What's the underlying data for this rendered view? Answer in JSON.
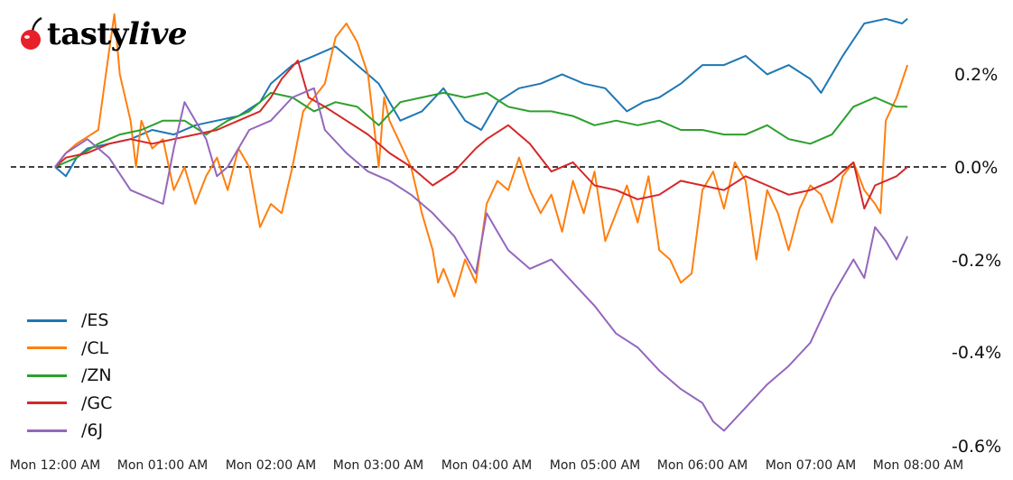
{
  "brand": {
    "logo_text_bold": "tasty",
    "logo_text_italic": "live",
    "logo_icon": "cherry-icon"
  },
  "chart_data": {
    "type": "line",
    "title": "",
    "xlabel": "",
    "ylabel": "",
    "ylim": [
      -0.6,
      0.33
    ],
    "yticks": [
      0.2,
      0.0,
      -0.2,
      -0.4,
      -0.6
    ],
    "ytick_labels": [
      "0.2%",
      "0.0%",
      "-0.2%",
      "-0.4%",
      "-0.6%"
    ],
    "yaxis_position": "right",
    "xtick_labels": [
      "Mon 12:00 AM",
      "Mon 01:00 AM",
      "Mon 02:00 AM",
      "Mon 03:00 AM",
      "Mon 04:00 AM",
      "Mon 05:00 AM",
      "Mon 06:00 AM",
      "Mon 07:00 AM",
      "Mon 08:00 AM"
    ],
    "x_unit": "hours since Mon 12:00 AM",
    "reference_line": {
      "y": 0.0,
      "style": "dashed",
      "color": "#000000"
    },
    "grid": false,
    "legend_position": "lower left",
    "series": [
      {
        "name": "/ES",
        "color": "#1f77b4",
        "x": [
          0,
          0.1,
          0.2,
          0.3,
          0.5,
          0.7,
          0.9,
          1.1,
          1.3,
          1.5,
          1.7,
          1.9,
          2.0,
          2.2,
          2.4,
          2.6,
          2.8,
          3.0,
          3.2,
          3.4,
          3.6,
          3.8,
          3.95,
          4.1,
          4.3,
          4.5,
          4.7,
          4.9,
          5.1,
          5.3,
          5.45,
          5.6,
          5.8,
          6.0,
          6.2,
          6.4,
          6.6,
          6.8,
          7.0,
          7.1,
          7.3,
          7.5,
          7.7,
          7.85,
          7.9
        ],
        "values": [
          0.0,
          -0.02,
          0.02,
          0.04,
          0.05,
          0.06,
          0.08,
          0.07,
          0.09,
          0.1,
          0.11,
          0.14,
          0.18,
          0.22,
          0.24,
          0.26,
          0.22,
          0.18,
          0.1,
          0.12,
          0.17,
          0.1,
          0.08,
          0.14,
          0.17,
          0.18,
          0.2,
          0.18,
          0.17,
          0.12,
          0.14,
          0.15,
          0.18,
          0.22,
          0.22,
          0.24,
          0.2,
          0.22,
          0.19,
          0.16,
          0.24,
          0.31,
          0.32,
          0.31,
          0.32
        ]
      },
      {
        "name": "/CL",
        "color": "#ff7f0e",
        "x": [
          0,
          0.1,
          0.2,
          0.4,
          0.5,
          0.55,
          0.6,
          0.7,
          0.75,
          0.8,
          0.9,
          1.0,
          1.1,
          1.2,
          1.3,
          1.4,
          1.5,
          1.6,
          1.7,
          1.8,
          1.9,
          2.0,
          2.1,
          2.2,
          2.3,
          2.5,
          2.6,
          2.7,
          2.8,
          2.9,
          3.0,
          3.05,
          3.1,
          3.2,
          3.3,
          3.4,
          3.5,
          3.55,
          3.6,
          3.7,
          3.8,
          3.9,
          4.0,
          4.1,
          4.2,
          4.3,
          4.4,
          4.5,
          4.6,
          4.7,
          4.8,
          4.9,
          5.0,
          5.1,
          5.2,
          5.3,
          5.4,
          5.5,
          5.6,
          5.7,
          5.8,
          5.9,
          6.0,
          6.1,
          6.2,
          6.3,
          6.4,
          6.5,
          6.6,
          6.7,
          6.8,
          6.9,
          7.0,
          7.1,
          7.2,
          7.3,
          7.4,
          7.5,
          7.6,
          7.65,
          7.7,
          7.8,
          7.9
        ],
        "values": [
          0.0,
          0.03,
          0.05,
          0.08,
          0.25,
          0.33,
          0.2,
          0.1,
          0.0,
          0.1,
          0.04,
          0.06,
          -0.05,
          0.0,
          -0.08,
          -0.02,
          0.02,
          -0.05,
          0.04,
          0.0,
          -0.13,
          -0.08,
          -0.1,
          0.0,
          0.12,
          0.18,
          0.28,
          0.31,
          0.27,
          0.2,
          0.0,
          0.15,
          0.1,
          0.05,
          0.0,
          -0.1,
          -0.18,
          -0.25,
          -0.22,
          -0.28,
          -0.2,
          -0.25,
          -0.08,
          -0.03,
          -0.05,
          0.02,
          -0.05,
          -0.1,
          -0.06,
          -0.14,
          -0.03,
          -0.1,
          -0.01,
          -0.16,
          -0.1,
          -0.04,
          -0.12,
          -0.02,
          -0.18,
          -0.2,
          -0.25,
          -0.23,
          -0.05,
          -0.01,
          -0.09,
          0.01,
          -0.03,
          -0.2,
          -0.05,
          -0.1,
          -0.18,
          -0.09,
          -0.04,
          -0.06,
          -0.12,
          -0.02,
          0.01,
          -0.05,
          -0.08,
          -0.1,
          0.1,
          0.15,
          0.22
        ]
      },
      {
        "name": "/ZN",
        "color": "#2ca02c",
        "x": [
          0,
          0.2,
          0.4,
          0.6,
          0.8,
          1.0,
          1.2,
          1.4,
          1.6,
          1.8,
          2.0,
          2.2,
          2.4,
          2.6,
          2.8,
          3.0,
          3.2,
          3.4,
          3.6,
          3.8,
          4.0,
          4.2,
          4.4,
          4.6,
          4.8,
          5.0,
          5.2,
          5.4,
          5.6,
          5.8,
          6.0,
          6.2,
          6.4,
          6.6,
          6.8,
          7.0,
          7.2,
          7.4,
          7.6,
          7.8,
          7.9
        ],
        "values": [
          0.0,
          0.02,
          0.05,
          0.07,
          0.08,
          0.1,
          0.1,
          0.07,
          0.1,
          0.12,
          0.16,
          0.15,
          0.12,
          0.14,
          0.13,
          0.09,
          0.14,
          0.15,
          0.16,
          0.15,
          0.16,
          0.13,
          0.12,
          0.12,
          0.11,
          0.09,
          0.1,
          0.09,
          0.1,
          0.08,
          0.08,
          0.07,
          0.07,
          0.09,
          0.06,
          0.05,
          0.07,
          0.13,
          0.15,
          0.13,
          0.13
        ]
      },
      {
        "name": "/GC",
        "color": "#d62728",
        "x": [
          0,
          0.1,
          0.3,
          0.5,
          0.7,
          0.9,
          1.1,
          1.3,
          1.5,
          1.7,
          1.9,
          2.0,
          2.1,
          2.25,
          2.35,
          2.5,
          2.7,
          2.9,
          3.1,
          3.3,
          3.5,
          3.7,
          3.9,
          4.0,
          4.2,
          4.4,
          4.6,
          4.8,
          5.0,
          5.2,
          5.4,
          5.6,
          5.8,
          6.0,
          6.2,
          6.4,
          6.6,
          6.8,
          7.0,
          7.2,
          7.4,
          7.5,
          7.6,
          7.8,
          7.9
        ],
        "values": [
          0.0,
          0.02,
          0.03,
          0.05,
          0.06,
          0.05,
          0.06,
          0.07,
          0.08,
          0.1,
          0.12,
          0.15,
          0.19,
          0.23,
          0.15,
          0.13,
          0.1,
          0.07,
          0.03,
          0.0,
          -0.04,
          -0.01,
          0.04,
          0.06,
          0.09,
          0.05,
          -0.01,
          0.01,
          -0.04,
          -0.05,
          -0.07,
          -0.06,
          -0.03,
          -0.04,
          -0.05,
          -0.02,
          -0.04,
          -0.06,
          -0.05,
          -0.03,
          0.01,
          -0.09,
          -0.04,
          -0.02,
          0.0
        ]
      },
      {
        "name": "/6J",
        "color": "#9467bd",
        "x": [
          0,
          0.1,
          0.3,
          0.5,
          0.7,
          0.9,
          1.0,
          1.1,
          1.2,
          1.4,
          1.5,
          1.6,
          1.8,
          2.0,
          2.2,
          2.4,
          2.5,
          2.7,
          2.9,
          3.1,
          3.3,
          3.5,
          3.7,
          3.9,
          4.0,
          4.2,
          4.4,
          4.6,
          4.8,
          5.0,
          5.2,
          5.4,
          5.6,
          5.8,
          6.0,
          6.1,
          6.2,
          6.4,
          6.6,
          6.8,
          7.0,
          7.2,
          7.4,
          7.5,
          7.6,
          7.7,
          7.8,
          7.9
        ],
        "values": [
          0.0,
          0.03,
          0.06,
          0.02,
          -0.05,
          -0.07,
          -0.08,
          0.04,
          0.14,
          0.06,
          -0.02,
          0.0,
          0.08,
          0.1,
          0.15,
          0.17,
          0.08,
          0.03,
          -0.01,
          -0.03,
          -0.06,
          -0.1,
          -0.15,
          -0.23,
          -0.1,
          -0.18,
          -0.22,
          -0.2,
          -0.25,
          -0.3,
          -0.36,
          -0.39,
          -0.44,
          -0.48,
          -0.51,
          -0.55,
          -0.57,
          -0.52,
          -0.47,
          -0.43,
          -0.38,
          -0.28,
          -0.2,
          -0.24,
          -0.13,
          -0.16,
          -0.2,
          -0.15
        ]
      }
    ]
  },
  "legend": {
    "items": [
      {
        "label": "/ES",
        "color": "#1f77b4"
      },
      {
        "label": "/CL",
        "color": "#ff7f0e"
      },
      {
        "label": "/ZN",
        "color": "#2ca02c"
      },
      {
        "label": "/GC",
        "color": "#d62728"
      },
      {
        "label": "/6J",
        "color": "#9467bd"
      }
    ]
  }
}
